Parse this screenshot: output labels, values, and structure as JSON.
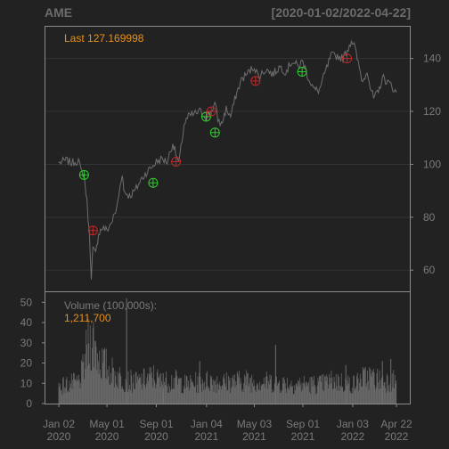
{
  "header": {
    "symbol": "AME",
    "date_range": "[2020-01-02/2022-04-22]"
  },
  "price_panel": {
    "last_label": "Last",
    "last_value": "127.169998"
  },
  "volume_panel": {
    "label": "Volume (100,000s):",
    "last_value": "1,211,700"
  },
  "colors": {
    "background": "#222222",
    "panel_border": "#8a8a8a",
    "grid": "#333333",
    "price_line": "#6e6e6e",
    "buy_marker": "#2ecc2e",
    "sell_marker": "#c0282a",
    "annotation": "#e8901a",
    "volume_bar": "#6e6e6e"
  },
  "chart_data": [
    {
      "type": "line",
      "title": "AME",
      "subtitle": "[2020-01-02/2022-04-22]",
      "ylim": [
        52,
        152
      ],
      "yticks": [
        60,
        80,
        100,
        120,
        140
      ],
      "axis_side": "right",
      "grid": true,
      "xticks": [
        {
          "month": "Jan 02",
          "year": "2020",
          "date": "2020-01-02"
        },
        {
          "month": "May 01",
          "year": "2020",
          "date": "2020-05-01"
        },
        {
          "month": "Sep 01",
          "year": "2020",
          "date": "2020-09-01"
        },
        {
          "month": "Jan 04",
          "year": "2021",
          "date": "2021-01-04"
        },
        {
          "month": "May 03",
          "year": "2021",
          "date": "2021-05-03"
        },
        {
          "month": "Sep 01",
          "year": "2021",
          "date": "2021-09-01"
        },
        {
          "month": "Jan 03",
          "year": "2022",
          "date": "2022-01-03"
        },
        {
          "month": "Apr 22",
          "year": "2022",
          "date": "2022-04-22"
        }
      ],
      "series": [
        {
          "points": [
            [
              "2020-01-02",
              100.5
            ],
            [
              "2020-01-20",
              101.5
            ],
            [
              "2020-02-03",
              100.5
            ],
            [
              "2020-02-20",
              101.5
            ],
            [
              "2020-02-26",
              97.5
            ],
            [
              "2020-03-05",
              96
            ],
            [
              "2020-03-12",
              86
            ],
            [
              "2020-03-18",
              74
            ],
            [
              "2020-03-23",
              58
            ],
            [
              "2020-03-27",
              68
            ],
            [
              "2020-04-03",
              66
            ],
            [
              "2020-04-10",
              74
            ],
            [
              "2020-04-20",
              76
            ],
            [
              "2020-05-01",
              75
            ],
            [
              "2020-05-12",
              78
            ],
            [
              "2020-05-25",
              83
            ],
            [
              "2020-06-08",
              97
            ],
            [
              "2020-06-12",
              90
            ],
            [
              "2020-06-26",
              88
            ],
            [
              "2020-07-10",
              90
            ],
            [
              "2020-07-24",
              94
            ],
            [
              "2020-08-07",
              97
            ],
            [
              "2020-08-21",
              99
            ],
            [
              "2020-09-01",
              101
            ],
            [
              "2020-09-15",
              102
            ],
            [
              "2020-09-28",
              101
            ],
            [
              "2020-10-12",
              108
            ],
            [
              "2020-10-27",
              100
            ],
            [
              "2020-11-09",
              115
            ],
            [
              "2020-11-20",
              118
            ],
            [
              "2020-12-04",
              119
            ],
            [
              "2020-12-18",
              120
            ],
            [
              "2021-01-04",
              118
            ],
            [
              "2021-01-15",
              120
            ],
            [
              "2021-01-25",
              123
            ],
            [
              "2021-02-01",
              117
            ],
            [
              "2021-02-10",
              115
            ],
            [
              "2021-02-22",
              121
            ],
            [
              "2021-03-05",
              118
            ],
            [
              "2021-03-18",
              126
            ],
            [
              "2021-04-01",
              132
            ],
            [
              "2021-04-20",
              135
            ],
            [
              "2021-05-03",
              137
            ],
            [
              "2021-05-14",
              133
            ],
            [
              "2021-06-01",
              136
            ],
            [
              "2021-06-18",
              134
            ],
            [
              "2021-07-06",
              137
            ],
            [
              "2021-07-20",
              135
            ],
            [
              "2021-08-05",
              139
            ],
            [
              "2021-08-20",
              137
            ],
            [
              "2021-09-01",
              139
            ],
            [
              "2021-09-14",
              133
            ],
            [
              "2021-09-30",
              128
            ],
            [
              "2021-10-12",
              128
            ],
            [
              "2021-10-25",
              134
            ],
            [
              "2021-11-10",
              141
            ],
            [
              "2021-11-26",
              141
            ],
            [
              "2021-12-10",
              140
            ],
            [
              "2021-12-23",
              144
            ],
            [
              "2021-12-31",
              147
            ],
            [
              "2022-01-07",
              145
            ],
            [
              "2022-01-14",
              140
            ],
            [
              "2022-01-28",
              131
            ],
            [
              "2022-02-08",
              136
            ],
            [
              "2022-02-16",
              129
            ],
            [
              "2022-02-24",
              125
            ],
            [
              "2022-03-08",
              127
            ],
            [
              "2022-03-18",
              133
            ],
            [
              "2022-03-31",
              131
            ],
            [
              "2022-04-08",
              130
            ],
            [
              "2022-04-22",
              127.17
            ]
          ]
        }
      ],
      "markers": [
        {
          "date": "2020-03-05",
          "value": 96,
          "kind": "buy"
        },
        {
          "date": "2020-03-27",
          "value": 75,
          "kind": "sell"
        },
        {
          "date": "2020-08-24",
          "value": 93,
          "kind": "buy"
        },
        {
          "date": "2020-10-20",
          "value": 101,
          "kind": "sell"
        },
        {
          "date": "2021-01-03",
          "value": 118,
          "kind": "buy"
        },
        {
          "date": "2021-01-16",
          "value": 120,
          "kind": "sell"
        },
        {
          "date": "2021-01-25",
          "value": 112,
          "kind": "buy"
        },
        {
          "date": "2021-05-06",
          "value": 131.5,
          "kind": "sell"
        },
        {
          "date": "2021-08-30",
          "value": 135,
          "kind": "buy"
        },
        {
          "date": "2021-12-20",
          "value": 140,
          "kind": "sell"
        }
      ]
    },
    {
      "type": "bar",
      "title": "Volume (100,000s):",
      "ylim": [
        0,
        55
      ],
      "yticks": [
        0,
        10,
        20,
        30,
        40,
        50
      ],
      "axis_side": "left",
      "volume_profile": [
        [
          "2020-01-02",
          9
        ],
        [
          "2020-02-20",
          11
        ],
        [
          "2020-03-01",
          16
        ],
        [
          "2020-03-15",
          30
        ],
        [
          "2020-03-25",
          34
        ],
        [
          "2020-04-15",
          22
        ],
        [
          "2020-05-15",
          16
        ],
        [
          "2020-06-15",
          12
        ],
        [
          "2020-07-15",
          11
        ],
        [
          "2020-08-25",
          14
        ],
        [
          "2020-09-15",
          11
        ],
        [
          "2020-10-15",
          12
        ],
        [
          "2020-11-15",
          10
        ],
        [
          "2020-12-15",
          11
        ],
        [
          "2021-01-15",
          12
        ],
        [
          "2021-02-15",
          11
        ],
        [
          "2021-04-15",
          12
        ],
        [
          "2021-06-15",
          11
        ],
        [
          "2021-08-15",
          10
        ],
        [
          "2021-10-15",
          10
        ],
        [
          "2021-11-15",
          12
        ],
        [
          "2022-01-05",
          10
        ],
        [
          "2022-01-28",
          13
        ],
        [
          "2022-02-15",
          14
        ],
        [
          "2022-03-15",
          12
        ],
        [
          "2022-04-22",
          12
        ]
      ],
      "spikes": [
        {
          "date": "2020-06-19",
          "value": 52
        },
        {
          "date": "2020-09-18",
          "value": 15
        },
        {
          "date": "2020-12-18",
          "value": 21
        },
        {
          "date": "2021-06-25",
          "value": 29
        },
        {
          "date": "2021-12-17",
          "value": 19
        },
        {
          "date": "2022-03-18",
          "value": 21
        },
        {
          "date": "2022-04-08",
          "value": 22
        }
      ]
    }
  ]
}
